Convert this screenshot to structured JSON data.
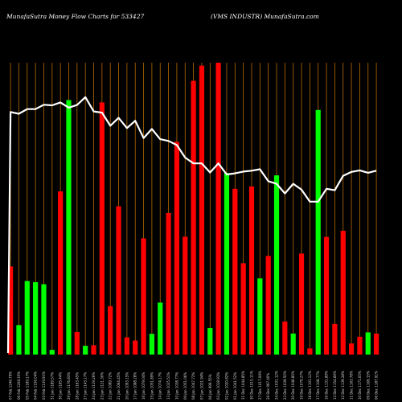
{
  "chart_data": {
    "type": "bar",
    "title_left": "MunafaSutra  Money Flow  Charts for 533427",
    "title_right": "(VMS INDUSTR) MunafaSutra.com",
    "ylim": [
      0,
      100
    ],
    "line_ylim": [
      0,
      100
    ],
    "colors": {
      "up": "#00ff00",
      "down": "#ff0000",
      "line": "#ffffff",
      "grid": "#b86a00",
      "background": "#000000"
    },
    "categories": [
      "07 Feb 1246.79%",
      "06 Feb 1208.35%",
      "05 Feb 1189.17%",
      "04 Feb 1156.04%",
      "03 Feb 1139.91%",
      "31 Jan 1189.57%",
      "30 Jan 1165.44%",
      "29 Jan 1176.83%",
      "28 Jan 1163.45%",
      "27 Jan 1143.17%",
      "24 Jan 1119.26%",
      "23 Jan 1121.30%",
      "22 Jan 1089.72%",
      "21 Jan 1064.45%",
      "20 Jan 1093.15%",
      "17 Jan 1088.28%",
      "16 Jan 1079.04%",
      "15 Jan 1051.89%",
      "14 Jan 1074.17%",
      "13 Jan 1035.51%",
      "10 Jan 1038.77%",
      "09 Jan 1051.06%",
      "08 Jan 1047.72%",
      "07 Jan 1021.94%",
      "06 Jan 999.55%",
      "03 Jan 1018.93%",
      "02 Jan 1020.82%",
      "01 Jan 1041.52%",
      "31 Dec 1044.85%",
      "30 Dec 1015.11%",
      "27 Dec 1017.09%",
      "26 Dec 997.40%",
      "24 Dec 1031.12%",
      "23 Dec 1039.50%",
      "20 Dec 1046.85%",
      "19 Dec 1079.27%",
      "18 Dec 1101.12%",
      "17 Dec 1108.77%",
      "16 Dec 1131.89%",
      "13 Dec 1154.66%",
      "12 Dec 1139.28%",
      "11 Dec 1163.78%",
      "10 Dec 1171.05%",
      "09 Dec 1169.15%",
      "06 Dec 1187.91%"
    ],
    "bar_colors": [
      "red",
      "green",
      "green",
      "green",
      "green",
      "green",
      "red",
      "green",
      "red",
      "green",
      "red",
      "red",
      "red",
      "red",
      "red",
      "red",
      "red",
      "green",
      "green",
      "red",
      "red",
      "red",
      "red",
      "red",
      "green",
      "red",
      "green",
      "red",
      "red",
      "red",
      "green",
      "red",
      "green",
      "red",
      "green",
      "red",
      "red",
      "green",
      "red",
      "red",
      "red",
      "red",
      "red",
      "green",
      "red"
    ],
    "values": [
      30.2,
      10.1,
      25.2,
      24.8,
      24.1,
      1.6,
      55.9,
      87.2,
      7.7,
      3.0,
      3.2,
      86.4,
      16.6,
      50.8,
      5.9,
      4.8,
      39.8,
      7.1,
      17.8,
      48.5,
      72.9,
      40.4,
      93.8,
      99.0,
      9.1,
      100.0,
      62.2,
      56.8,
      31.3,
      57.6,
      26.1,
      33.8,
      61.4,
      11.3,
      7.2,
      34.6,
      2.1,
      83.8,
      40.3,
      10.5,
      42.4,
      3.8,
      6.1,
      7.6,
      7.2
    ],
    "line_values": [
      83.1,
      82.5,
      84.1,
      84.1,
      85.6,
      85.4,
      86.4,
      84.6,
      85.5,
      88.2,
      83.3,
      82.9,
      78.4,
      81.1,
      77.6,
      80.1,
      74.2,
      77.3,
      73.8,
      73.2,
      71.8,
      67.5,
      65.5,
      65.5,
      62.4,
      65.5,
      61.7,
      62.1,
      62.7,
      63.0,
      63.5,
      59.4,
      58.5,
      55.2,
      58.5,
      56.5,
      52.4,
      52.4,
      56.8,
      56.3,
      61.2,
      62.6,
      63.1,
      62.3,
      63.0
    ]
  }
}
